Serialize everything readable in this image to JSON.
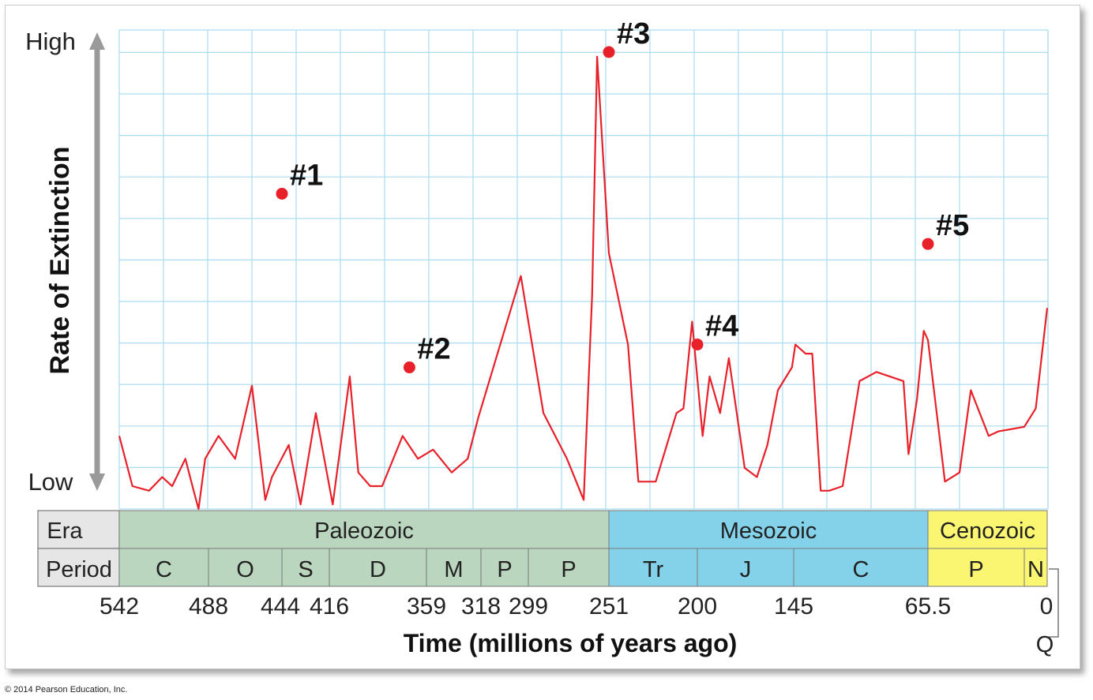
{
  "chart_data": {
    "type": "line",
    "title": "",
    "xlabel": "Time (millions of years ago)",
    "ylabel": "Rate of Extinction",
    "y_axis_top_label": "High",
    "y_axis_bottom_label": "Low",
    "y_scale": "relative (Low to High), no numeric ticks",
    "ylim": [
      0,
      100
    ],
    "grid": true,
    "line_color": "#e8202a",
    "x_ticks": [
      "542",
      "488",
      "444",
      "416",
      "359",
      "318",
      "299",
      "251",
      "200",
      "145",
      "65.5",
      "0"
    ],
    "x_tick_values": [
      542,
      488,
      444,
      416,
      359,
      318,
      299,
      251,
      200,
      145,
      65.5,
      0
    ],
    "series": [
      {
        "x": [
          542,
          534,
          524,
          516,
          510,
          502,
          497,
          494,
          490,
          482,
          472,
          462,
          454,
          450,
          440,
          433,
          424,
          414,
          404,
          399,
          392,
          385,
          373,
          364,
          354,
          340,
          328,
          320,
          302,
          290,
          276,
          266,
          261,
          258,
          251,
          240,
          234,
          224,
          212,
          208,
          203,
          197,
          193,
          187,
          182,
          173,
          166,
          160,
          154,
          146,
          144,
          138,
          134,
          129,
          124,
          116,
          106,
          96,
          80,
          77,
          72,
          68,
          65.5,
          55,
          46,
          39,
          28,
          22,
          6,
          3,
          0
        ],
        "y": [
          16,
          5,
          4,
          7,
          5,
          11,
          4,
          0,
          11,
          16,
          11,
          27,
          2,
          7,
          14,
          1,
          21,
          1,
          29,
          8,
          5,
          5,
          16,
          11,
          13,
          8,
          11,
          20,
          51,
          21,
          11,
          2,
          47,
          99,
          56,
          36,
          6,
          6,
          21,
          22,
          41,
          16,
          29,
          21,
          33,
          9,
          7,
          14,
          26,
          31,
          36,
          34,
          34,
          4,
          4,
          5,
          28,
          30,
          28,
          12,
          24,
          39,
          37,
          6,
          8,
          26,
          16,
          17,
          18,
          22,
          44
        ]
      }
    ],
    "x_reversed": true,
    "y_points_units_note": "",
    "peaks": [
      {
        "label": "#1",
        "x": 444,
        "y": 69
      },
      {
        "label": "#2",
        "x": 369,
        "y": 31
      },
      {
        "label": "#3",
        "x": 251,
        "y": 100
      },
      {
        "label": "#4",
        "x": 200,
        "y": 36
      },
      {
        "label": "#5",
        "x": 65.5,
        "y": 58
      }
    ],
    "timeline": {
      "era_label": "Era",
      "period_label": "Period",
      "eras": [
        {
          "name": "Paleozoic",
          "start": 542,
          "end": 251,
          "color": "#bad6bf"
        },
        {
          "name": "Mesozoic",
          "start": 251,
          "end": 65.5,
          "color": "#84d1ea"
        },
        {
          "name": "Cenozoic",
          "start": 65.5,
          "end": 0,
          "color": "#fbf671"
        }
      ],
      "periods": [
        {
          "name": "C",
          "start": 542,
          "end": 488,
          "era": 0
        },
        {
          "name": "O",
          "start": 488,
          "end": 444,
          "era": 0
        },
        {
          "name": "S",
          "start": 444,
          "end": 416,
          "era": 0
        },
        {
          "name": "D",
          "start": 416,
          "end": 359,
          "era": 0
        },
        {
          "name": "M",
          "start": 359,
          "end": 318,
          "era": 0
        },
        {
          "name": "P",
          "start": 318,
          "end": 299,
          "era": 0
        },
        {
          "name": "P",
          "start": 299,
          "end": 251,
          "era": 0
        },
        {
          "name": "Tr",
          "start": 251,
          "end": 200,
          "era": 1
        },
        {
          "name": "J",
          "start": 200,
          "end": 145,
          "era": 1
        },
        {
          "name": "C",
          "start": 145,
          "end": 65.5,
          "era": 1
        },
        {
          "name": "P",
          "start": 65.5,
          "end": 6,
          "era": 2
        },
        {
          "name": "N",
          "start": 6,
          "end": 0,
          "era": 2
        }
      ],
      "quaternary_label": "Q"
    }
  },
  "copyright": "© 2014 Pearson Education, Inc."
}
